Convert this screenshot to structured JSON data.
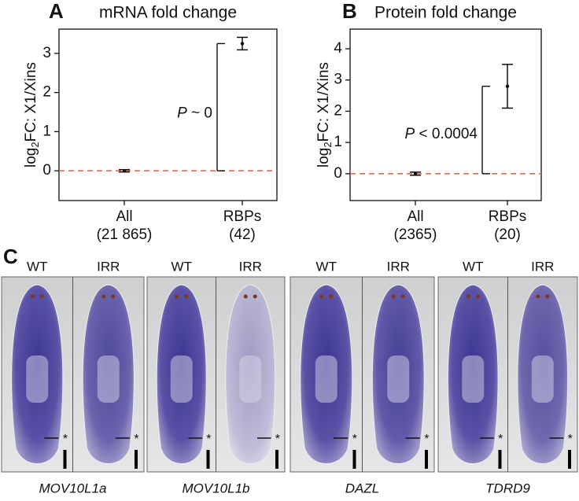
{
  "chart_data": [
    {
      "type": "errorbar",
      "panel_label": "A",
      "title": "mRNA fold change",
      "ylabel": {
        "base": "log",
        "sub": "2",
        "rest": "FC: X1/Xins"
      },
      "categories": [
        "All",
        "RBPs"
      ],
      "category_counts": [
        "(21 865)",
        "(42)"
      ],
      "values": [
        0,
        3.25
      ],
      "errors": [
        0.03,
        0.16
      ],
      "color": "#111111",
      "ylim": [
        -0.76,
        3.62
      ],
      "yticks": [
        0,
        1,
        2,
        3
      ],
      "reference_line": 0,
      "reference_color": "#e0603a",
      "annotation": {
        "symbol": "P",
        "text": "~ 0"
      }
    },
    {
      "type": "errorbar",
      "panel_label": "B",
      "title": "Protein fold change",
      "ylabel": {
        "base": "log",
        "sub": "2",
        "rest": "FC: X1/Xins"
      },
      "categories": [
        "All",
        "RBPs"
      ],
      "category_counts": [
        "(2365)",
        "(20)"
      ],
      "values": [
        0,
        2.8
      ],
      "errors": [
        0.05,
        0.7
      ],
      "color": "#111111",
      "ylim": [
        -0.86,
        4.63
      ],
      "yticks": [
        0,
        1,
        2,
        3,
        4
      ],
      "reference_line": 0,
      "reference_color": "#e0603a",
      "annotation": {
        "symbol": "P",
        "text": "< 0.0004"
      }
    }
  ],
  "panel_c": {
    "label": "C",
    "marker": "*",
    "groups": [
      {
        "gene": "MOV10L1a",
        "conditions": [
          "WT",
          "IRR"
        ]
      },
      {
        "gene": "MOV10L1b",
        "conditions": [
          "WT",
          "IRR"
        ]
      },
      {
        "gene": "DAZL",
        "conditions": [
          "WT",
          "IRR"
        ]
      },
      {
        "gene": "TDRD9",
        "conditions": [
          "WT",
          "IRR"
        ]
      }
    ]
  }
}
